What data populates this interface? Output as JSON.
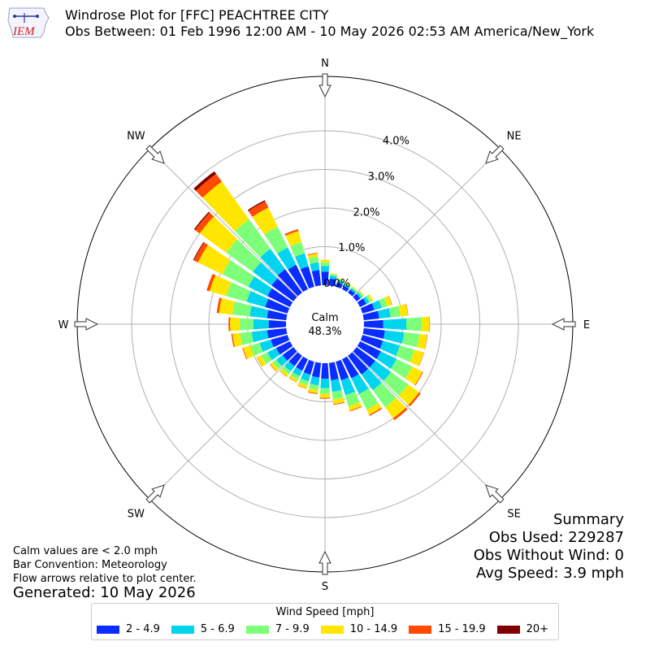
{
  "logo_text": "IEM",
  "title": "Windrose Plot for [FFC] PEACHTREE CITY",
  "subtitle": "Obs Between: 01 Feb 1996 12:00 AM - 10 May 2026 02:53 AM America/New_York",
  "notes": {
    "calm": "Calm values are < 2.0 mph",
    "bar_convention": "Bar Convention: Meteorology",
    "flow": "Flow arrows relative to plot center."
  },
  "generated": "Generated: 10 May 2026",
  "summary": {
    "title": "Summary",
    "obs_used": "Obs Used: 229287",
    "obs_without_wind": "Obs Without Wind: 0",
    "avg_speed": "Avg Speed: 3.9 mph"
  },
  "legend": {
    "title": "Wind Speed [mph]",
    "items": [
      {
        "label": "2 - 4.9",
        "color": "#0a2cff"
      },
      {
        "label": "5 - 6.9",
        "color": "#00d4ee"
      },
      {
        "label": "7 - 9.9",
        "color": "#7dff7a"
      },
      {
        "label": "10 - 14.9",
        "color": "#ffe600"
      },
      {
        "label": "15 - 19.9",
        "color": "#ff4a00"
      },
      {
        "label": "20+",
        "color": "#800000"
      }
    ]
  },
  "chart_data": {
    "type": "windrose",
    "center_label": "Calm",
    "center_value": "48.3%",
    "radial_ticks": [
      "0.0%",
      "1.0%",
      "2.0%",
      "3.0%",
      "4.0%"
    ],
    "radial_max": 4.5,
    "directions": [
      "N",
      "NE",
      "E",
      "SE",
      "S",
      "SW",
      "W",
      "NW"
    ],
    "bin_width_deg": 10,
    "speed_bins": [
      "2 - 4.9",
      "5 - 6.9",
      "7 - 9.9",
      "10 - 14.9",
      "15 - 19.9",
      "20+"
    ],
    "bars": [
      {
        "dir": 0,
        "values": [
          0.35,
          0.15,
          0.1,
          0.06,
          0.0,
          0.0
        ]
      },
      {
        "dir": 10,
        "values": [
          0.18,
          0.08,
          0.04,
          0.02,
          0.0,
          0.0
        ]
      },
      {
        "dir": 20,
        "values": [
          0.12,
          0.06,
          0.03,
          0.02,
          0.0,
          0.0
        ]
      },
      {
        "dir": 30,
        "values": [
          0.1,
          0.05,
          0.03,
          0.02,
          0.0,
          0.0
        ]
      },
      {
        "dir": 40,
        "values": [
          0.1,
          0.05,
          0.03,
          0.02,
          0.0,
          0.0
        ]
      },
      {
        "dir": 50,
        "values": [
          0.12,
          0.06,
          0.04,
          0.03,
          0.0,
          0.0
        ]
      },
      {
        "dir": 60,
        "values": [
          0.18,
          0.09,
          0.06,
          0.05,
          0.0,
          0.0
        ]
      },
      {
        "dir": 70,
        "values": [
          0.32,
          0.2,
          0.15,
          0.12,
          0.01,
          0.0
        ]
      },
      {
        "dir": 80,
        "values": [
          0.4,
          0.3,
          0.25,
          0.2,
          0.01,
          0.0
        ]
      },
      {
        "dir": 90,
        "values": [
          0.5,
          0.6,
          0.4,
          0.2,
          0.01,
          0.0
        ]
      },
      {
        "dir": 100,
        "values": [
          0.55,
          0.5,
          0.4,
          0.2,
          0.01,
          0.0
        ]
      },
      {
        "dir": 110,
        "values": [
          0.55,
          0.45,
          0.4,
          0.25,
          0.01,
          0.0
        ]
      },
      {
        "dir": 120,
        "values": [
          0.6,
          0.45,
          0.45,
          0.3,
          0.02,
          0.0
        ]
      },
      {
        "dir": 130,
        "values": [
          0.6,
          0.5,
          0.55,
          0.35,
          0.05,
          0.0
        ]
      },
      {
        "dir": 140,
        "values": [
          0.6,
          0.5,
          0.55,
          0.35,
          0.06,
          0.0
        ]
      },
      {
        "dir": 150,
        "values": [
          0.55,
          0.45,
          0.45,
          0.15,
          0.03,
          0.0
        ]
      },
      {
        "dir": 160,
        "values": [
          0.5,
          0.4,
          0.3,
          0.12,
          0.02,
          0.0
        ]
      },
      {
        "dir": 170,
        "values": [
          0.45,
          0.3,
          0.2,
          0.12,
          0.02,
          0.0
        ]
      },
      {
        "dir": 180,
        "values": [
          0.4,
          0.25,
          0.15,
          0.1,
          0.02,
          0.0
        ]
      },
      {
        "dir": 190,
        "values": [
          0.38,
          0.2,
          0.12,
          0.09,
          0.02,
          0.0
        ]
      },
      {
        "dir": 200,
        "values": [
          0.35,
          0.18,
          0.11,
          0.08,
          0.01,
          0.0
        ]
      },
      {
        "dir": 210,
        "values": [
          0.33,
          0.16,
          0.1,
          0.07,
          0.01,
          0.0
        ]
      },
      {
        "dir": 220,
        "values": [
          0.33,
          0.17,
          0.1,
          0.07,
          0.01,
          0.0
        ]
      },
      {
        "dir": 230,
        "values": [
          0.35,
          0.2,
          0.12,
          0.08,
          0.01,
          0.0
        ]
      },
      {
        "dir": 240,
        "values": [
          0.4,
          0.25,
          0.18,
          0.12,
          0.01,
          0.0
        ]
      },
      {
        "dir": 250,
        "values": [
          0.45,
          0.3,
          0.25,
          0.2,
          0.02,
          0.0
        ]
      },
      {
        "dir": 260,
        "values": [
          0.5,
          0.4,
          0.3,
          0.2,
          0.03,
          0.0
        ]
      },
      {
        "dir": 270,
        "values": [
          0.45,
          0.4,
          0.35,
          0.25,
          0.04,
          0.0
        ]
      },
      {
        "dir": 280,
        "values": [
          0.5,
          0.45,
          0.45,
          0.35,
          0.06,
          0.0
        ]
      },
      {
        "dir": 290,
        "values": [
          0.6,
          0.5,
          0.55,
          0.45,
          0.08,
          0.0
        ]
      },
      {
        "dir": 300,
        "values": [
          0.65,
          0.55,
          0.75,
          0.7,
          0.12,
          0.02
        ]
      },
      {
        "dir": 310,
        "values": [
          0.7,
          0.6,
          0.85,
          0.85,
          0.15,
          0.03
        ]
      },
      {
        "dir": 320,
        "values": [
          0.75,
          0.65,
          0.95,
          1.2,
          0.25,
          0.08
        ]
      },
      {
        "dir": 330,
        "values": [
          0.7,
          0.5,
          0.6,
          0.55,
          0.18,
          0.03
        ]
      },
      {
        "dir": 340,
        "values": [
          0.55,
          0.35,
          0.3,
          0.3,
          0.05,
          0.0
        ]
      },
      {
        "dir": 350,
        "values": [
          0.4,
          0.2,
          0.15,
          0.08,
          0.02,
          0.0
        ]
      }
    ]
  }
}
